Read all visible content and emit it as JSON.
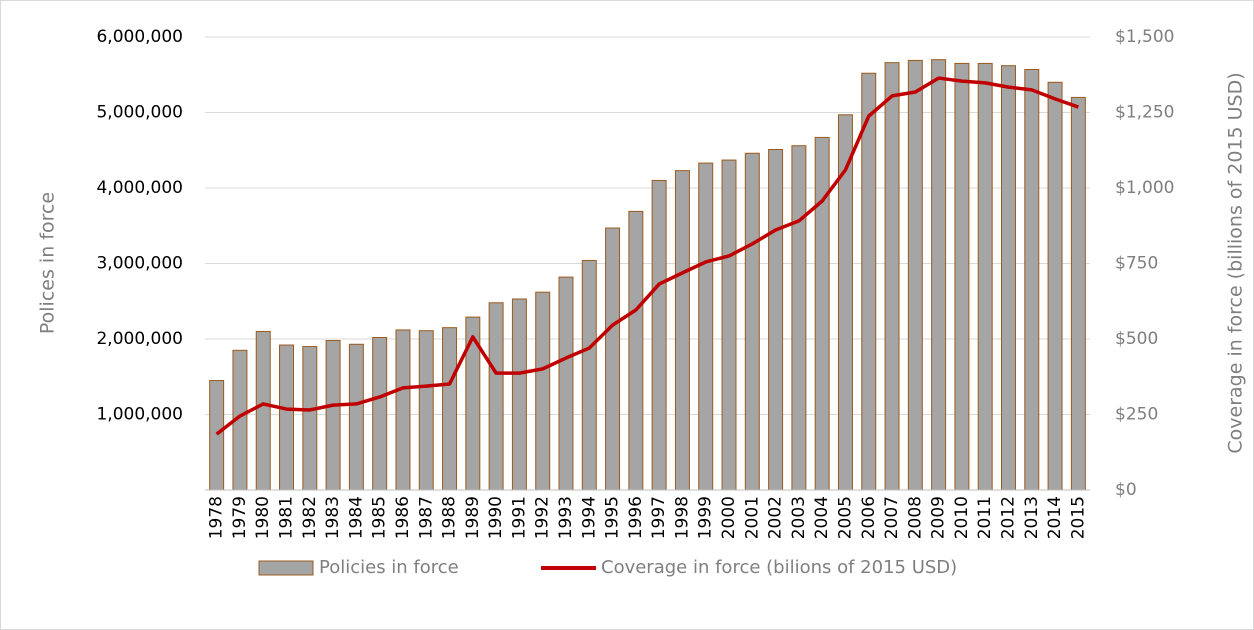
{
  "chart_data": {
    "type": "combo",
    "categories": [
      "1978",
      "1979",
      "1980",
      "1981",
      "1982",
      "1983",
      "1984",
      "1985",
      "1986",
      "1987",
      "1988",
      "1989",
      "1990",
      "1991",
      "1992",
      "1993",
      "1994",
      "1995",
      "1996",
      "1997",
      "1998",
      "1999",
      "2000",
      "2001",
      "2002",
      "2003",
      "2004",
      "2005",
      "2006",
      "2007",
      "2008",
      "2009",
      "2010",
      "2011",
      "2012",
      "2013",
      "2014",
      "2015"
    ],
    "series": [
      {
        "name": "Policies in force",
        "type": "bar",
        "axis": "y",
        "color": "#a5a5a5",
        "edge_color": "#9c5a1d",
        "values": [
          1450000,
          1850000,
          2100000,
          1920000,
          1900000,
          1980000,
          1930000,
          2020000,
          2120000,
          2110000,
          2150000,
          2290000,
          2480000,
          2530000,
          2620000,
          2820000,
          3040000,
          3470000,
          3690000,
          4100000,
          4230000,
          4330000,
          4370000,
          4460000,
          4510000,
          4560000,
          4670000,
          4970000,
          5520000,
          5660000,
          5690000,
          5700000,
          5650000,
          5650000,
          5620000,
          5570000,
          5400000,
          5200000
        ]
      },
      {
        "name": "Coverage in force (bilions of 2015 USD)",
        "type": "line",
        "axis": "y2",
        "color": "#c00000",
        "values": [
          185,
          245,
          285,
          268,
          265,
          281,
          285,
          308,
          338,
          344,
          351,
          507,
          387,
          387,
          401,
          437,
          470,
          546,
          596,
          682,
          719,
          755,
          775,
          815,
          861,
          891,
          957,
          1060,
          1238,
          1305,
          1318,
          1364,
          1354,
          1348,
          1334,
          1325,
          1295,
          1268
        ]
      }
    ],
    "ylabel": "Polices in force",
    "y2label": "Coverage in force (billions of 2015 USD)",
    "ylim": [
      0,
      6000000
    ],
    "yticks": [
      {
        "value": 1000000,
        "label": "1,000,000"
      },
      {
        "value": 2000000,
        "label": "2,000,000"
      },
      {
        "value": 3000000,
        "label": "3,000,000"
      },
      {
        "value": 4000000,
        "label": "4,000,000"
      },
      {
        "value": 5000000,
        "label": "5,000,000"
      },
      {
        "value": 6000000,
        "label": "6,000,000"
      }
    ],
    "y2lim": [
      0,
      1500
    ],
    "y2ticks": [
      {
        "value": 0,
        "label": "$0"
      },
      {
        "value": 250,
        "label": "$250"
      },
      {
        "value": 500,
        "label": "$500"
      },
      {
        "value": 750,
        "label": "$750"
      },
      {
        "value": 1000,
        "label": "$1,000"
      },
      {
        "value": 1250,
        "label": "$1,250"
      },
      {
        "value": 1500,
        "label": "$1,500"
      }
    ],
    "grid": true,
    "legend": "bottom"
  }
}
